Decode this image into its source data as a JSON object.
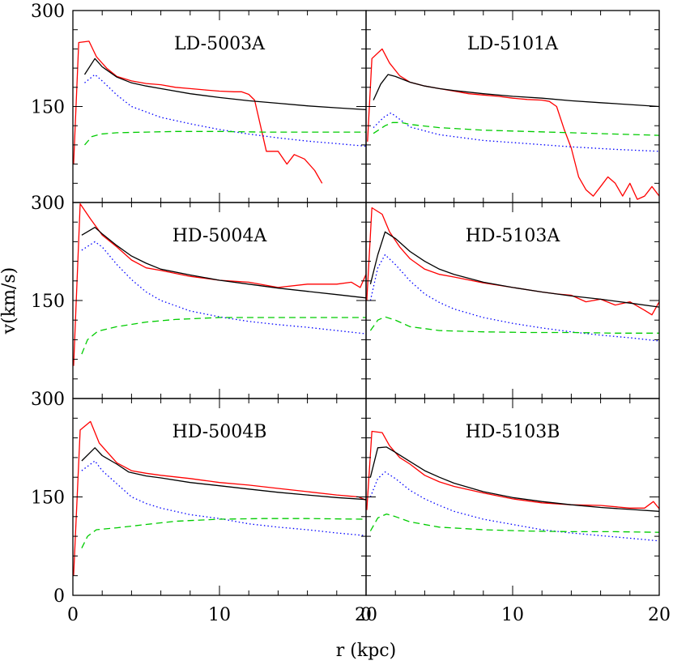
{
  "figure": {
    "xlabel": "r (kpc)",
    "ylabel": "v(km/s)"
  },
  "colors": {
    "observed": "#ff0000",
    "total": "#000000",
    "stellar": "#0000ff",
    "dark_matter": "#00cc00"
  },
  "chart_data": [
    {
      "type": "line",
      "title": "LD-5003A",
      "xlim": [
        0,
        20
      ],
      "ylim": [
        0,
        300
      ],
      "x_ticks": [
        0,
        10,
        20
      ],
      "y_ticks": [
        150,
        300
      ],
      "series": [
        {
          "style": "solid-red",
          "x": [
            0.05,
            0.4,
            1.1,
            1.6,
            2.3,
            3.0,
            4,
            5,
            6,
            7,
            8,
            9,
            10,
            11,
            11.5,
            12,
            12.4,
            13.2,
            14,
            14.6,
            15.1,
            15.8,
            16.5,
            17
          ],
          "y": [
            60,
            250,
            252,
            228,
            210,
            197,
            190,
            186,
            184,
            180,
            178,
            176,
            174,
            173,
            173,
            169,
            160,
            80,
            80,
            60,
            75,
            68,
            50,
            30
          ]
        },
        {
          "style": "solid-black",
          "x": [
            0.8,
            1.5,
            2,
            3,
            4,
            5,
            6,
            8,
            10,
            12,
            14,
            16,
            18,
            20
          ],
          "y": [
            200,
            225,
            212,
            196,
            187,
            182,
            178,
            170,
            164,
            159,
            155,
            151,
            148,
            145
          ]
        },
        {
          "style": "dotted-blue",
          "x": [
            0.8,
            1.5,
            2,
            3,
            4,
            6,
            8,
            10,
            12,
            14,
            16,
            18,
            20
          ],
          "y": [
            187,
            200,
            190,
            168,
            150,
            133,
            123,
            114,
            107,
            101,
            96,
            92,
            88
          ]
        },
        {
          "style": "dashed-green",
          "x": [
            0.8,
            1.3,
            1.9,
            3,
            5,
            7,
            10,
            13,
            16,
            20
          ],
          "y": [
            90,
            103,
            107,
            109,
            110,
            111,
            111,
            110,
            110,
            110
          ]
        }
      ]
    },
    {
      "type": "line",
      "title": "LD-5101A",
      "xlim": [
        0,
        20
      ],
      "ylim": [
        0,
        300
      ],
      "x_ticks": [
        0,
        10,
        20
      ],
      "series": [
        {
          "style": "solid-red",
          "x": [
            0.1,
            0.4,
            1.1,
            1.6,
            2.3,
            3,
            4,
            5,
            6,
            7,
            8,
            9,
            10,
            11,
            12,
            12.5,
            13,
            13.5,
            14,
            14.5,
            15,
            15.5,
            16,
            16.5,
            17,
            17.5,
            18,
            18.5,
            19,
            19.5,
            20
          ],
          "y": [
            95,
            225,
            240,
            218,
            198,
            188,
            182,
            178,
            174,
            170,
            168,
            166,
            163,
            161,
            160,
            158,
            150,
            115,
            85,
            40,
            20,
            10,
            25,
            40,
            30,
            10,
            30,
            5,
            10,
            25,
            10
          ]
        },
        {
          "style": "solid-black",
          "x": [
            0.5,
            1.0,
            1.5,
            2,
            3,
            4,
            5,
            6,
            8,
            10,
            12,
            14,
            16,
            18,
            20
          ],
          "y": [
            160,
            185,
            200,
            197,
            188,
            182,
            178,
            175,
            170,
            166,
            163,
            159,
            156,
            153,
            150
          ]
        },
        {
          "style": "dotted-blue",
          "x": [
            0.5,
            1.2,
            1.7,
            2.3,
            3,
            5,
            8,
            11,
            14,
            17,
            20
          ],
          "y": [
            117,
            133,
            140,
            130,
            118,
            106,
            97,
            92,
            87,
            83,
            80
          ]
        },
        {
          "style": "dashed-green",
          "x": [
            0.5,
            1.3,
            1.8,
            2.4,
            3,
            5,
            8,
            11,
            14,
            17,
            20
          ],
          "y": [
            108,
            120,
            125,
            125,
            122,
            117,
            113,
            111,
            109,
            107,
            105
          ]
        }
      ]
    },
    {
      "type": "line",
      "title": "HD-5004A",
      "xlim": [
        0,
        20
      ],
      "ylim": [
        0,
        300
      ],
      "x_ticks": [
        0,
        10,
        20
      ],
      "y_ticks": [
        150,
        300
      ],
      "series": [
        {
          "style": "solid-red",
          "x": [
            0.05,
            0.5,
            1.2,
            2,
            3,
            4,
            5,
            6,
            8,
            10,
            12,
            14,
            16,
            18,
            19,
            19.6,
            20
          ],
          "y": [
            50,
            298,
            275,
            250,
            232,
            212,
            200,
            196,
            187,
            181,
            178,
            170,
            175,
            175,
            178,
            170,
            190
          ]
        },
        {
          "style": "solid-black",
          "x": [
            0.6,
            1.5,
            2,
            3,
            4,
            5,
            6,
            8,
            10,
            12,
            14,
            16,
            18,
            20
          ],
          "y": [
            250,
            262,
            252,
            234,
            218,
            207,
            198,
            189,
            181,
            175,
            169,
            164,
            159,
            154
          ]
        },
        {
          "style": "dotted-blue",
          "x": [
            0.6,
            1.5,
            2,
            3,
            4,
            5,
            6,
            8,
            10,
            12,
            14,
            16,
            18,
            20
          ],
          "y": [
            227,
            240,
            232,
            205,
            182,
            163,
            150,
            134,
            125,
            118,
            113,
            109,
            104,
            99
          ]
        },
        {
          "style": "dashed-green",
          "x": [
            0.6,
            1.0,
            1.7,
            3,
            5,
            7,
            10,
            13,
            16,
            20
          ],
          "y": [
            68,
            90,
            103,
            110,
            117,
            121,
            124,
            124,
            124,
            124
          ]
        }
      ]
    },
    {
      "type": "line",
      "title": "HD-5103A",
      "xlim": [
        0,
        20
      ],
      "ylim": [
        0,
        300
      ],
      "x_ticks": [
        0,
        10,
        20
      ],
      "series": [
        {
          "style": "solid-red",
          "x": [
            0.05,
            0.4,
            1.1,
            1.6,
            2.3,
            3,
            4,
            5,
            6,
            8,
            10,
            12,
            13,
            14,
            15,
            16,
            17,
            18,
            19,
            19.5,
            20
          ],
          "y": [
            150,
            292,
            282,
            255,
            232,
            214,
            198,
            190,
            186,
            177,
            170,
            163,
            160,
            158,
            148,
            152,
            143,
            148,
            135,
            128,
            148
          ]
        },
        {
          "style": "solid-black",
          "x": [
            0.3,
            0.8,
            1.3,
            2,
            3,
            4,
            5,
            6,
            8,
            10,
            12,
            14,
            16,
            18,
            20
          ],
          "y": [
            175,
            220,
            255,
            245,
            225,
            210,
            198,
            190,
            178,
            170,
            163,
            157,
            152,
            146,
            140
          ]
        },
        {
          "style": "dotted-blue",
          "x": [
            0.3,
            0.8,
            1.3,
            2,
            3,
            4,
            5,
            6,
            8,
            10,
            12,
            14,
            16,
            18,
            20
          ],
          "y": [
            150,
            200,
            220,
            205,
            180,
            160,
            147,
            137,
            124,
            115,
            108,
            102,
            97,
            93,
            88
          ]
        },
        {
          "style": "dashed-green",
          "x": [
            0.3,
            0.8,
            1.3,
            2,
            3,
            5,
            8,
            11,
            14,
            17,
            20
          ],
          "y": [
            104,
            120,
            125,
            120,
            110,
            104,
            102,
            101,
            101,
            100,
            100
          ]
        }
      ]
    },
    {
      "type": "line",
      "title": "HD-5004B",
      "xlim": [
        0,
        20
      ],
      "ylim": [
        0,
        300
      ],
      "x_ticks": [
        0,
        10,
        20
      ],
      "y_ticks": [
        0,
        150,
        300
      ],
      "series": [
        {
          "style": "solid-red",
          "x": [
            0.05,
            0.5,
            1.2,
            1.8,
            3,
            4,
            5,
            6,
            8,
            10,
            12,
            14,
            16,
            18,
            19,
            19.5,
            20
          ],
          "y": [
            30,
            252,
            265,
            232,
            202,
            190,
            186,
            183,
            178,
            172,
            168,
            163,
            158,
            153,
            151,
            150,
            145
          ]
        },
        {
          "style": "solid-black",
          "x": [
            0.6,
            1.5,
            2,
            3,
            3.8,
            5,
            6,
            8,
            10,
            12,
            14,
            16,
            18,
            20
          ],
          "y": [
            205,
            225,
            213,
            200,
            188,
            182,
            179,
            172,
            167,
            162,
            157,
            153,
            149,
            146
          ]
        },
        {
          "style": "dotted-blue",
          "x": [
            0.6,
            1.5,
            2,
            3,
            4,
            5,
            6,
            8,
            10,
            12,
            14,
            16,
            18,
            20
          ],
          "y": [
            190,
            205,
            190,
            170,
            150,
            140,
            133,
            123,
            117,
            109,
            104,
            100,
            95,
            91
          ]
        },
        {
          "style": "dashed-green",
          "x": [
            0.6,
            1.0,
            1.6,
            3,
            5,
            7,
            10,
            13,
            16,
            20
          ],
          "y": [
            72,
            90,
            100,
            103,
            108,
            113,
            116,
            117,
            117,
            116
          ]
        }
      ]
    },
    {
      "type": "line",
      "title": "HD-5103B",
      "xlim": [
        0,
        20
      ],
      "ylim": [
        0,
        300
      ],
      "x_ticks": [
        0,
        10,
        20
      ],
      "series": [
        {
          "style": "solid-red",
          "x": [
            0.05,
            0.4,
            1.1,
            1.6,
            2.3,
            3,
            4,
            5,
            6,
            8,
            10,
            12,
            14,
            16,
            18,
            19,
            19.6,
            20
          ],
          "y": [
            130,
            250,
            248,
            228,
            210,
            200,
            183,
            173,
            166,
            156,
            147,
            141,
            138,
            137,
            133,
            133,
            143,
            132
          ]
        },
        {
          "style": "solid-black",
          "x": [
            0.3,
            0.8,
            1.4,
            2,
            3,
            4,
            5,
            6,
            8,
            10,
            12,
            14,
            16,
            18,
            20
          ],
          "y": [
            180,
            225,
            226,
            218,
            204,
            190,
            180,
            171,
            158,
            149,
            143,
            138,
            134,
            131,
            128
          ]
        },
        {
          "style": "dotted-blue",
          "x": [
            0.3,
            0.8,
            1.3,
            2,
            3,
            4,
            5,
            6,
            8,
            10,
            12,
            14,
            16,
            18,
            20
          ],
          "y": [
            150,
            178,
            188,
            178,
            160,
            147,
            137,
            128,
            116,
            108,
            100,
            95,
            91,
            87,
            83
          ]
        },
        {
          "style": "dashed-green",
          "x": [
            0.3,
            0.8,
            1.4,
            2,
            3,
            5,
            8,
            11,
            14,
            17,
            20
          ],
          "y": [
            98,
            118,
            124,
            120,
            112,
            104,
            100,
            98,
            97,
            97,
            96
          ]
        }
      ]
    }
  ]
}
